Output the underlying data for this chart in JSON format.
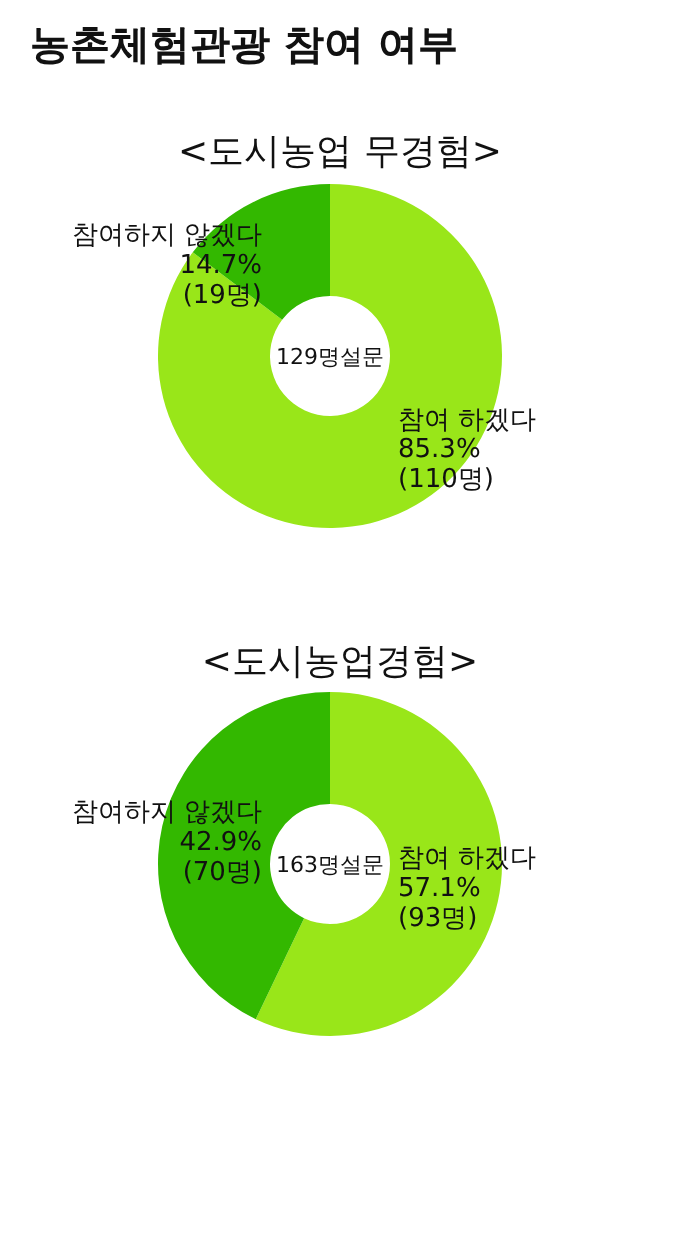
{
  "chart_data": [
    {
      "type": "donut",
      "title": "농촌체험관광 참여 여부",
      "subtitle": "<도시농업 무경험>",
      "categories": [
        "참여 하겠다",
        "참여하지 않겠다"
      ],
      "values": [
        85.3,
        14.7
      ],
      "colors": [
        "#99e619",
        "#33b800"
      ],
      "value_labels": [
        "85.3%\n(110명)",
        "14.7%\n(19명)"
      ],
      "annotations": [
        "129명설문"
      ]
    },
    {
      "type": "donut",
      "title": "<도시농업경험>",
      "categories": [
        "참여 하겠다",
        "참여하지 않겠다"
      ],
      "values": [
        57.1,
        42.9
      ],
      "colors": [
        "#99e619",
        "#33b800"
      ],
      "value_labels": [
        "57.1%\n(93명)",
        "42.9%\n(70명)"
      ],
      "annotations": [
        "163명설문"
      ]
    }
  ]
}
